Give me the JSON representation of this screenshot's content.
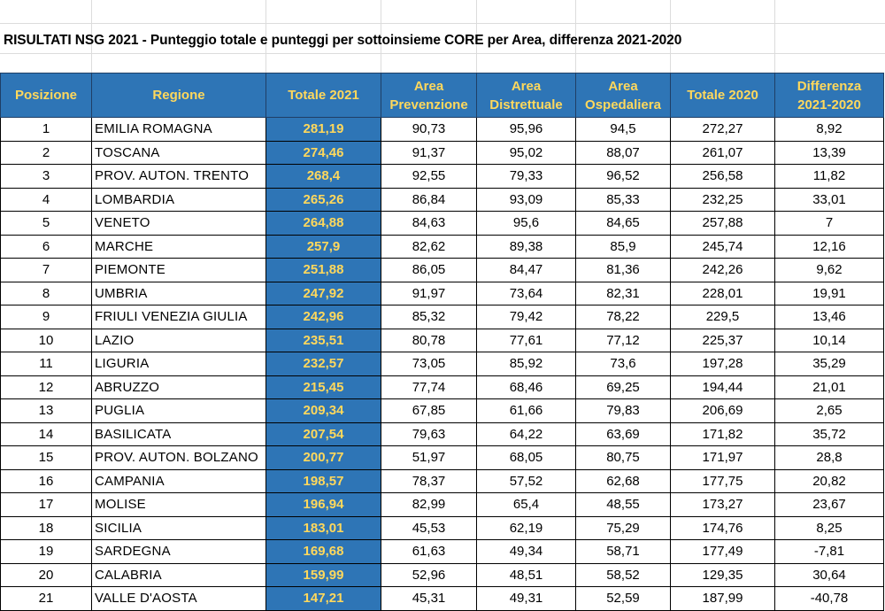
{
  "title": "RISULTATI NSG 2021 - Punteggio totale e punteggi per sottoinsieme CORE per Area, differenza 2021-2020",
  "colors": {
    "header_bg": "#2e75b6",
    "header_text": "#ffd85c"
  },
  "headers": [
    "Posizione",
    "Regione",
    "Totale 2021",
    "Area Prevenzione",
    "Area Distrettuale",
    "Area Ospedaliera",
    "Totale 2020",
    "Differenza 2021-2020"
  ],
  "rows": [
    [
      "1",
      "EMILIA ROMAGNA",
      "281,19",
      "90,73",
      "95,96",
      "94,5",
      "272,27",
      "8,92"
    ],
    [
      "2",
      "TOSCANA",
      "274,46",
      "91,37",
      "95,02",
      "88,07",
      "261,07",
      "13,39"
    ],
    [
      "3",
      "PROV. AUTON. TRENTO",
      "268,4",
      "92,55",
      "79,33",
      "96,52",
      "256,58",
      "11,82"
    ],
    [
      "4",
      "LOMBARDIA",
      "265,26",
      "86,84",
      "93,09",
      "85,33",
      "232,25",
      "33,01"
    ],
    [
      "5",
      "VENETO",
      "264,88",
      "84,63",
      "95,6",
      "84,65",
      "257,88",
      "7"
    ],
    [
      "6",
      "MARCHE",
      "257,9",
      "82,62",
      "89,38",
      "85,9",
      "245,74",
      "12,16"
    ],
    [
      "7",
      "PIEMONTE",
      "251,88",
      "86,05",
      "84,47",
      "81,36",
      "242,26",
      "9,62"
    ],
    [
      "8",
      "UMBRIA",
      "247,92",
      "91,97",
      "73,64",
      "82,31",
      "228,01",
      "19,91"
    ],
    [
      "9",
      "FRIULI VENEZIA GIULIA",
      "242,96",
      "85,32",
      "79,42",
      "78,22",
      "229,5",
      "13,46"
    ],
    [
      "10",
      "LAZIO",
      "235,51",
      "80,78",
      "77,61",
      "77,12",
      "225,37",
      "10,14"
    ],
    [
      "11",
      "LIGURIA",
      "232,57",
      "73,05",
      "85,92",
      "73,6",
      "197,28",
      "35,29"
    ],
    [
      "12",
      "ABRUZZO",
      "215,45",
      "77,74",
      "68,46",
      "69,25",
      "194,44",
      "21,01"
    ],
    [
      "13",
      "PUGLIA",
      "209,34",
      "67,85",
      "61,66",
      "79,83",
      "206,69",
      "2,65"
    ],
    [
      "14",
      "BASILICATA",
      "207,54",
      "79,63",
      "64,22",
      "63,69",
      "171,82",
      "35,72"
    ],
    [
      "15",
      "PROV. AUTON. BOLZANO",
      "200,77",
      "51,97",
      "68,05",
      "80,75",
      "171,97",
      "28,8"
    ],
    [
      "16",
      "CAMPANIA",
      "198,57",
      "78,37",
      "57,52",
      "62,68",
      "177,75",
      "20,82"
    ],
    [
      "17",
      "MOLISE",
      "196,94",
      "82,99",
      "65,4",
      "48,55",
      "173,27",
      "23,67"
    ],
    [
      "18",
      "SICILIA",
      "183,01",
      "45,53",
      "62,19",
      "75,29",
      "174,76",
      "8,25"
    ],
    [
      "19",
      "SARDEGNA",
      "169,68",
      "61,63",
      "49,34",
      "58,71",
      "177,49",
      "-7,81"
    ],
    [
      "20",
      "CALABRIA",
      "159,99",
      "52,96",
      "48,51",
      "58,52",
      "129,35",
      "30,64"
    ],
    [
      "21",
      "VALLE D'AOSTA",
      "147,21",
      "45,31",
      "49,31",
      "52,59",
      "187,99",
      "-40,78"
    ]
  ]
}
